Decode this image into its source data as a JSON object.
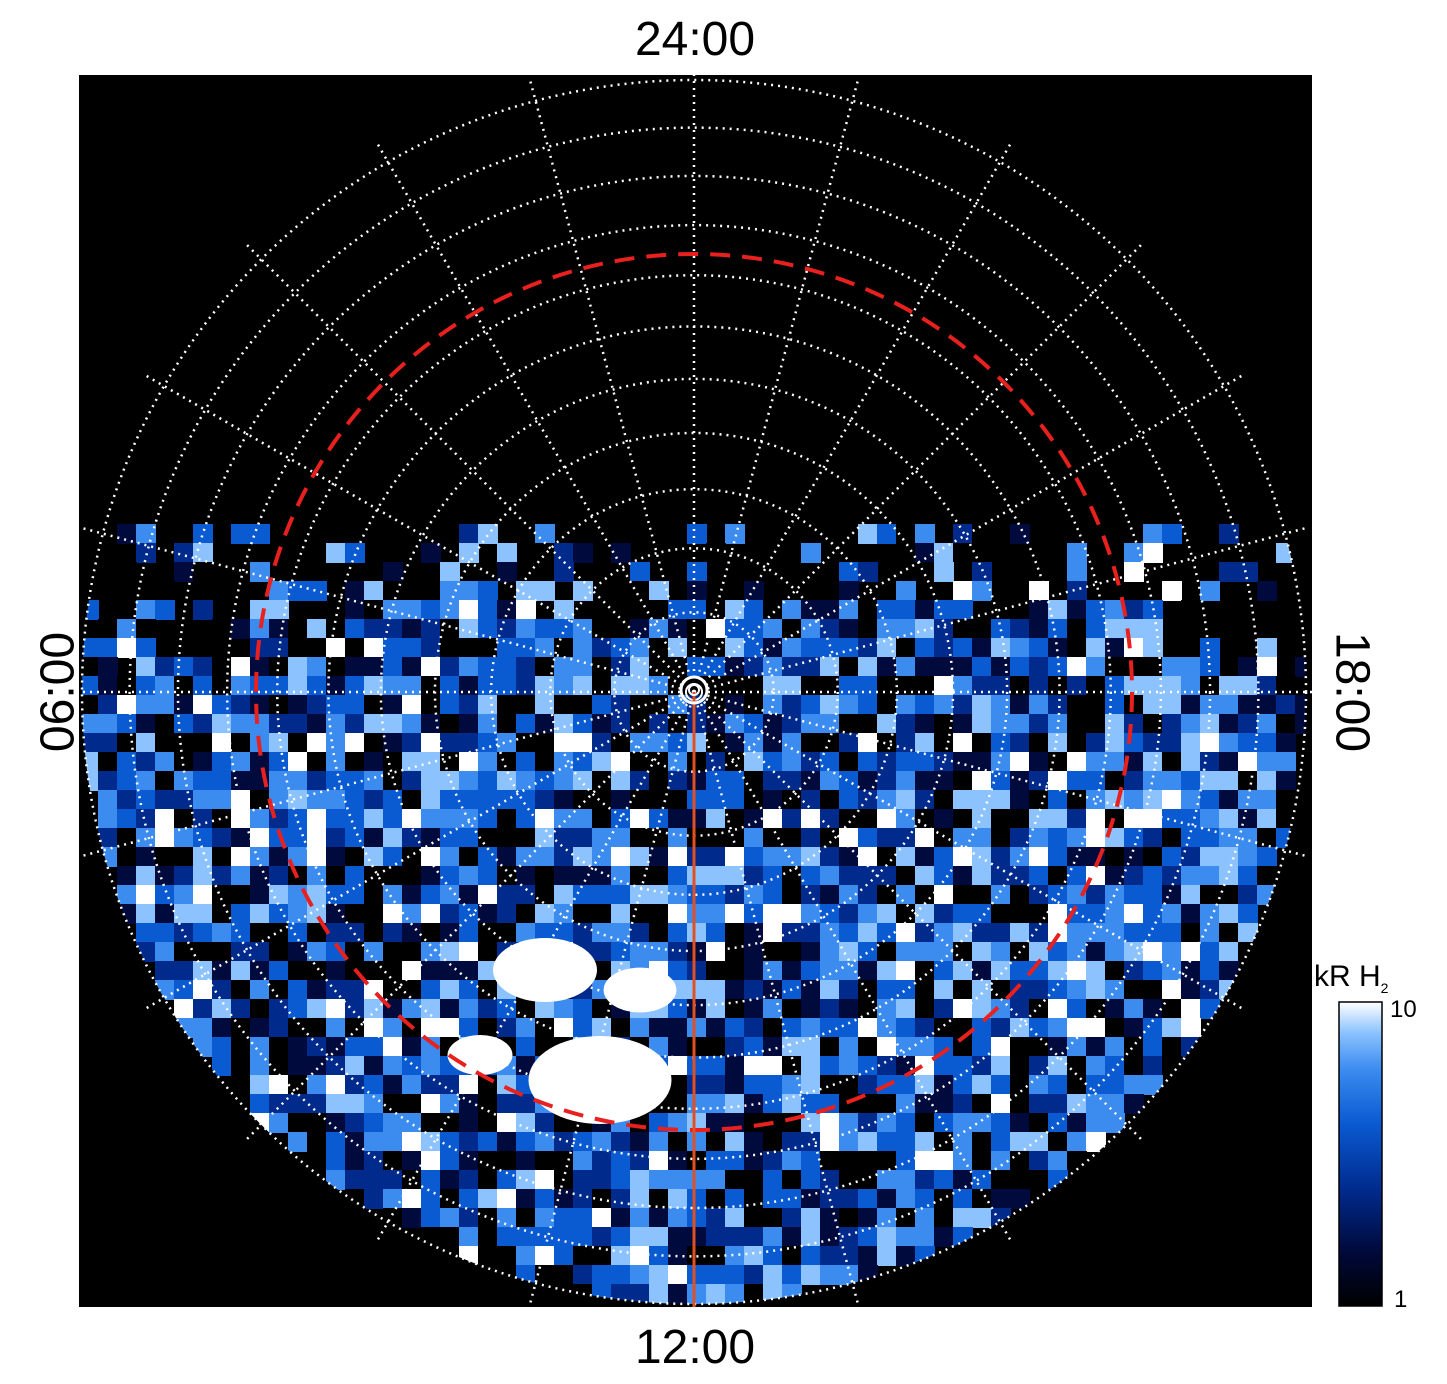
{
  "figure": {
    "labels": {
      "top": "24:00",
      "bottom": "12:00",
      "left": "06:00",
      "right": "18:00"
    },
    "colorbar": {
      "unit": "kR H",
      "unit_subscript": "2",
      "max_label": "10",
      "min_label": "1",
      "scale": "log",
      "colors": [
        "#000000",
        "#000a3c",
        "#002a8c",
        "#0a5ad2",
        "#3c8cf0",
        "#8cc3ff",
        "#ffffff"
      ]
    },
    "image": {
      "background": "#000000",
      "grid_color": "#ffffff",
      "grid_style": "dotted",
      "grid_rings": 11,
      "grid_meridians": 24,
      "reference_circle_color": "#e8201e",
      "reference_circle_style": "dashed",
      "meridian_line_color": "#e05020",
      "center_marker": "concentric-circle"
    }
  }
}
